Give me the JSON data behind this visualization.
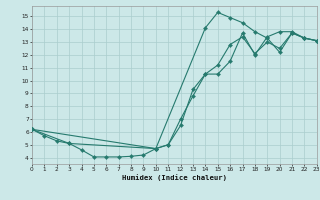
{
  "xlabel": "Humidex (Indice chaleur)",
  "bg_color": "#cce8e8",
  "grid_color": "#aacece",
  "line_color": "#267a6e",
  "xlim": [
    0,
    23
  ],
  "ylim": [
    3.5,
    15.8
  ],
  "xticks": [
    0,
    1,
    2,
    3,
    4,
    5,
    6,
    7,
    8,
    9,
    10,
    11,
    12,
    13,
    14,
    15,
    16,
    17,
    18,
    19,
    20,
    21,
    22,
    23
  ],
  "yticks": [
    4,
    5,
    6,
    7,
    8,
    9,
    10,
    11,
    12,
    13,
    14,
    15
  ],
  "line1_x": [
    0,
    1,
    2,
    3,
    4,
    5,
    6,
    7,
    8,
    9,
    10,
    11,
    12,
    13,
    14,
    15,
    16,
    17,
    18,
    19,
    20,
    21,
    22,
    23
  ],
  "line1_y": [
    6.2,
    5.7,
    5.3,
    5.1,
    4.6,
    4.05,
    4.05,
    4.05,
    4.1,
    4.2,
    4.7,
    5.0,
    6.5,
    9.3,
    10.5,
    10.5,
    11.5,
    13.7,
    12.0,
    13.4,
    13.8,
    13.8,
    13.3,
    13.1
  ],
  "line2_x": [
    0,
    3,
    10,
    14,
    15,
    16,
    17,
    18,
    19,
    20,
    21,
    22,
    23
  ],
  "line2_y": [
    6.2,
    5.1,
    4.7,
    14.1,
    15.3,
    14.9,
    14.5,
    13.8,
    13.3,
    12.2,
    13.7,
    13.3,
    13.1
  ],
  "line3_x": [
    0,
    10,
    11,
    12,
    13,
    14,
    15,
    16,
    17,
    18,
    19,
    20,
    21,
    22,
    23
  ],
  "line3_y": [
    6.2,
    4.7,
    5.0,
    7.0,
    8.8,
    10.5,
    11.2,
    12.8,
    13.4,
    12.1,
    13.0,
    12.5,
    13.7,
    13.3,
    13.1
  ]
}
